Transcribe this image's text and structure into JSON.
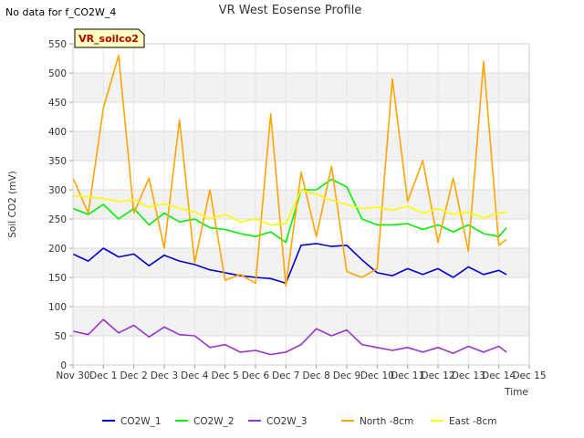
{
  "no_data_note": "No data for f_CO2W_4",
  "chart_data": {
    "type": "line",
    "title": "VR West Eosense Profile",
    "site_badge": "VR_soilco2",
    "xlabel": "Time",
    "ylabel": "Soil CO2 (mV)",
    "xlim": [
      "2023-11-30",
      "2023-12-15"
    ],
    "ylim": [
      0,
      550
    ],
    "y_ticks": [
      0,
      50,
      100,
      150,
      200,
      250,
      300,
      350,
      400,
      450,
      500,
      550
    ],
    "x_ticks": [
      "Nov 30",
      "Dec 1",
      "Dec 2",
      "Dec 3",
      "Dec 4",
      "Dec 5",
      "Dec 6",
      "Dec 7",
      "Dec 8",
      "Dec 9",
      "Dec 10",
      "Dec 11",
      "Dec 12",
      "Dec 13",
      "Dec 14",
      "Dec 15"
    ],
    "grid": true,
    "legend_position": "bottom",
    "x": [
      "Nov 30 00:00",
      "Nov 30 12:00",
      "Dec 1 00:00",
      "Dec 1 12:00",
      "Dec 2 00:00",
      "Dec 2 12:00",
      "Dec 3 00:00",
      "Dec 3 12:00",
      "Dec 4 00:00",
      "Dec 4 12:00",
      "Dec 5 00:00",
      "Dec 5 12:00",
      "Dec 6 00:00",
      "Dec 6 12:00",
      "Dec 7 00:00",
      "Dec 7 12:00",
      "Dec 8 00:00",
      "Dec 8 12:00",
      "Dec 9 00:00",
      "Dec 9 12:00",
      "Dec 10 00:00",
      "Dec 10 12:00",
      "Dec 11 00:00",
      "Dec 11 12:00",
      "Dec 12 00:00",
      "Dec 12 12:00",
      "Dec 13 00:00",
      "Dec 13 12:00",
      "Dec 14 00:00",
      "Dec 14 06:00"
    ],
    "series": [
      {
        "name": "CO2W_1",
        "color": "#0000cc",
        "values": [
          190,
          178,
          200,
          185,
          190,
          170,
          188,
          178,
          172,
          163,
          158,
          153,
          150,
          148,
          140,
          205,
          208,
          203,
          205,
          180,
          158,
          153,
          165,
          155,
          165,
          150,
          168,
          155,
          162,
          155
        ]
      },
      {
        "name": "CO2W_2",
        "color": "#00ee00",
        "values": [
          268,
          258,
          275,
          250,
          268,
          240,
          260,
          245,
          250,
          235,
          232,
          225,
          220,
          228,
          210,
          300,
          300,
          318,
          305,
          250,
          240,
          240,
          242,
          232,
          240,
          228,
          240,
          225,
          220,
          235
        ]
      },
      {
        "name": "CO2W_3",
        "color": "#9933cc",
        "values": [
          58,
          52,
          78,
          55,
          68,
          48,
          65,
          52,
          50,
          30,
          35,
          22,
          25,
          18,
          22,
          35,
          62,
          50,
          60,
          35,
          30,
          25,
          30,
          22,
          30,
          20,
          32,
          22,
          32,
          22
        ]
      },
      {
        "name": "North -8cm",
        "color": "#ffa500",
        "values": [
          320,
          260,
          440,
          530,
          260,
          320,
          200,
          420,
          175,
          300,
          145,
          155,
          140,
          430,
          135,
          330,
          220,
          340,
          160,
          150,
          165,
          490,
          280,
          350,
          210,
          320,
          195,
          520,
          205,
          215
        ]
      },
      {
        "name": "East -8cm",
        "color": "#ffff00",
        "values": [
          290,
          288,
          285,
          280,
          283,
          270,
          276,
          268,
          262,
          250,
          258,
          245,
          250,
          240,
          242,
          300,
          292,
          282,
          275,
          268,
          270,
          265,
          272,
          260,
          268,
          258,
          262,
          252,
          260,
          262
        ]
      }
    ]
  }
}
